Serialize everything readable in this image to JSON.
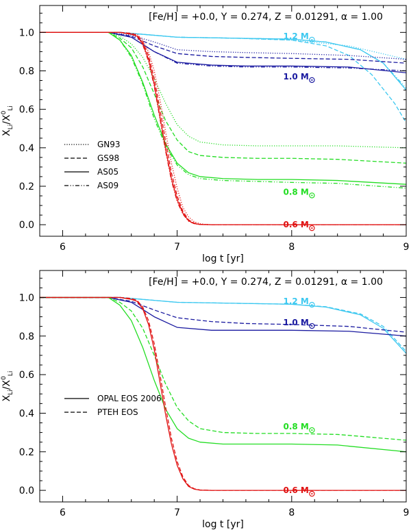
{
  "chart_data": [
    {
      "type": "line",
      "params_text": "[Fe/H] = +0.0, Y = 0.274, Z = 0.01291, α = 1.00",
      "xlabel": "log t [yr]",
      "ylabel": "X_Li / X^0_Li",
      "xlim": [
        5.8,
        9.0
      ],
      "ylim": [
        -0.06,
        1.14
      ],
      "xticks": [
        "6",
        "7",
        "8",
        "9"
      ],
      "yticks": [
        "0.0",
        "0.2",
        "0.4",
        "0.6",
        "0.8",
        "1.0"
      ],
      "legend_position": "center-left",
      "legend": [
        {
          "label": "GN93",
          "style": "dotted"
        },
        {
          "label": "GS98",
          "style": "dashed"
        },
        {
          "label": "AS05",
          "style": "solid"
        },
        {
          "label": "AS09",
          "style": "dashdot"
        }
      ],
      "masses": [
        {
          "label": "1.2 M",
          "color": "#3cc8f0",
          "label_at": [
            8.15,
            0.98
          ]
        },
        {
          "label": "1.0 M",
          "color": "#1a1aa0",
          "label_at": [
            8.15,
            0.77
          ]
        },
        {
          "label": "0.8 M",
          "color": "#22dd22",
          "label_at": [
            8.15,
            0.17
          ]
        },
        {
          "label": "0.6 M",
          "color": "#e01010",
          "label_at": [
            8.15,
            0.0
          ]
        }
      ],
      "series": [
        {
          "mass": "1.2 M",
          "style": "dotted",
          "x": [
            5.8,
            6.5,
            6.8,
            7.0,
            7.5,
            8.0,
            8.5,
            9.0
          ],
          "y": [
            1.0,
            1.0,
            0.985,
            0.975,
            0.97,
            0.96,
            0.93,
            0.86
          ]
        },
        {
          "mass": "1.2 M",
          "style": "dashed",
          "x": [
            5.8,
            6.5,
            6.8,
            7.0,
            7.5,
            8.0,
            8.3,
            8.5,
            8.7,
            8.9,
            9.0
          ],
          "y": [
            1.0,
            1.0,
            0.985,
            0.975,
            0.97,
            0.96,
            0.93,
            0.88,
            0.78,
            0.63,
            0.53
          ]
        },
        {
          "mass": "1.2 M",
          "style": "solid",
          "x": [
            5.8,
            6.5,
            6.8,
            7.0,
            7.5,
            8.0,
            8.3,
            8.6,
            8.8,
            9.0
          ],
          "y": [
            1.0,
            1.0,
            0.985,
            0.975,
            0.97,
            0.965,
            0.95,
            0.91,
            0.84,
            0.7
          ]
        },
        {
          "mass": "1.2 M",
          "style": "dashdot",
          "x": [
            5.8,
            6.5,
            6.8,
            7.0,
            7.5,
            8.0,
            8.3,
            8.6,
            8.8,
            9.0
          ],
          "y": [
            1.0,
            1.0,
            0.985,
            0.975,
            0.97,
            0.965,
            0.95,
            0.91,
            0.84,
            0.71
          ]
        },
        {
          "mass": "1.0 M",
          "style": "dotted",
          "x": [
            5.8,
            6.4,
            6.6,
            6.8,
            7.0,
            7.3,
            7.6,
            8.0,
            8.5,
            9.0
          ],
          "y": [
            1.0,
            1.0,
            0.985,
            0.95,
            0.91,
            0.9,
            0.895,
            0.89,
            0.88,
            0.86
          ]
        },
        {
          "mass": "1.0 M",
          "style": "dashed",
          "x": [
            5.8,
            6.4,
            6.6,
            6.8,
            7.0,
            7.3,
            7.6,
            8.0,
            8.5,
            9.0
          ],
          "y": [
            1.0,
            1.0,
            0.98,
            0.93,
            0.89,
            0.875,
            0.87,
            0.865,
            0.86,
            0.84
          ]
        },
        {
          "mass": "1.0 M",
          "style": "solid",
          "x": [
            5.8,
            6.4,
            6.6,
            6.8,
            7.0,
            7.3,
            7.6,
            8.0,
            8.5,
            9.0
          ],
          "y": [
            1.0,
            1.0,
            0.975,
            0.9,
            0.845,
            0.83,
            0.825,
            0.825,
            0.82,
            0.79
          ]
        },
        {
          "mass": "1.0 M",
          "style": "dashdot",
          "x": [
            5.8,
            6.4,
            6.6,
            6.8,
            7.0,
            7.3,
            7.6,
            8.0,
            8.5,
            9.0
          ],
          "y": [
            1.0,
            1.0,
            0.975,
            0.9,
            0.84,
            0.825,
            0.82,
            0.82,
            0.815,
            0.8
          ]
        },
        {
          "mass": "0.8 M",
          "style": "dotted",
          "x": [
            5.8,
            6.4,
            6.5,
            6.6,
            6.7,
            6.8,
            6.9,
            7.0,
            7.1,
            7.2,
            7.4,
            7.7,
            8.0,
            8.4,
            9.0
          ],
          "y": [
            1.0,
            1.0,
            0.98,
            0.94,
            0.87,
            0.76,
            0.63,
            0.52,
            0.46,
            0.43,
            0.415,
            0.41,
            0.41,
            0.41,
            0.4
          ]
        },
        {
          "mass": "0.8 M",
          "style": "dashed",
          "x": [
            5.8,
            6.4,
            6.5,
            6.6,
            6.7,
            6.8,
            6.9,
            7.0,
            7.1,
            7.2,
            7.4,
            7.7,
            8.0,
            8.4,
            9.0
          ],
          "y": [
            1.0,
            1.0,
            0.97,
            0.92,
            0.82,
            0.68,
            0.54,
            0.44,
            0.38,
            0.36,
            0.35,
            0.345,
            0.345,
            0.34,
            0.32
          ]
        },
        {
          "mass": "0.8 M",
          "style": "solid",
          "x": [
            5.8,
            6.4,
            6.5,
            6.6,
            6.7,
            6.8,
            6.9,
            7.0,
            7.1,
            7.2,
            7.4,
            7.7,
            8.0,
            8.4,
            9.0
          ],
          "y": [
            1.0,
            1.0,
            0.96,
            0.88,
            0.74,
            0.57,
            0.42,
            0.32,
            0.27,
            0.25,
            0.24,
            0.235,
            0.235,
            0.23,
            0.21
          ]
        },
        {
          "mass": "0.8 M",
          "style": "dashdot",
          "x": [
            5.8,
            6.4,
            6.5,
            6.6,
            6.7,
            6.8,
            6.9,
            7.0,
            7.1,
            7.2,
            7.4,
            7.7,
            8.0,
            8.4,
            9.0
          ],
          "y": [
            1.0,
            1.0,
            0.96,
            0.87,
            0.73,
            0.55,
            0.41,
            0.31,
            0.26,
            0.24,
            0.23,
            0.225,
            0.22,
            0.215,
            0.19
          ]
        },
        {
          "mass": "0.6 M",
          "style": "dotted",
          "x": [
            5.8,
            6.5,
            6.6,
            6.65,
            6.7,
            6.75,
            6.8,
            6.85,
            6.9,
            6.95,
            7.0,
            7.05,
            7.1,
            7.15,
            7.2,
            7.25,
            7.3,
            9.0
          ],
          "y": [
            1.0,
            1.0,
            0.995,
            0.99,
            0.96,
            0.9,
            0.8,
            0.65,
            0.48,
            0.32,
            0.19,
            0.09,
            0.04,
            0.015,
            0.005,
            0.001,
            0.0,
            0.0
          ]
        },
        {
          "mass": "0.6 M",
          "style": "dashed",
          "x": [
            5.8,
            6.5,
            6.6,
            6.65,
            6.7,
            6.75,
            6.8,
            6.85,
            6.9,
            6.95,
            7.0,
            7.05,
            7.1,
            7.15,
            7.2,
            7.3,
            9.0
          ],
          "y": [
            1.0,
            1.0,
            0.995,
            0.985,
            0.95,
            0.88,
            0.76,
            0.6,
            0.43,
            0.27,
            0.15,
            0.07,
            0.025,
            0.008,
            0.002,
            0.0,
            0.0
          ]
        },
        {
          "mass": "0.6 M",
          "style": "solid",
          "x": [
            5.8,
            6.5,
            6.6,
            6.65,
            6.7,
            6.75,
            6.8,
            6.85,
            6.9,
            6.95,
            7.0,
            7.05,
            7.1,
            7.15,
            7.2,
            7.3,
            9.0
          ],
          "y": [
            1.0,
            1.0,
            0.99,
            0.98,
            0.94,
            0.86,
            0.73,
            0.56,
            0.39,
            0.24,
            0.13,
            0.06,
            0.02,
            0.006,
            0.001,
            0.0,
            0.0
          ]
        },
        {
          "mass": "0.6 M",
          "style": "dashdot",
          "x": [
            5.8,
            6.5,
            6.6,
            6.65,
            6.7,
            6.75,
            6.8,
            6.85,
            6.9,
            6.95,
            7.0,
            7.05,
            7.1,
            7.15,
            7.2,
            7.3,
            9.0
          ],
          "y": [
            1.0,
            1.0,
            0.99,
            0.98,
            0.935,
            0.85,
            0.72,
            0.55,
            0.38,
            0.23,
            0.12,
            0.055,
            0.018,
            0.005,
            0.001,
            0.0,
            0.0
          ]
        }
      ]
    },
    {
      "type": "line",
      "params_text": "[Fe/H] = +0.0, Y = 0.274, Z = 0.01291, α = 1.00",
      "xlabel": "log t [yr]",
      "ylabel": "X_Li / X^0_Li",
      "xlim": [
        5.8,
        9.0
      ],
      "ylim": [
        -0.06,
        1.14
      ],
      "xticks": [
        "6",
        "7",
        "8",
        "9"
      ],
      "yticks": [
        "0.0",
        "0.2",
        "0.4",
        "0.6",
        "0.8",
        "1.0"
      ],
      "legend_position": "center-left",
      "legend": [
        {
          "label": "OPAL EOS 2006",
          "style": "solid"
        },
        {
          "label": "PTEH EOS",
          "style": "dashed"
        }
      ],
      "masses": [
        {
          "label": "1.2 M",
          "color": "#3cc8f0",
          "label_at": [
            8.15,
            0.98
          ]
        },
        {
          "label": "1.0 M",
          "color": "#1a1aa0",
          "label_at": [
            8.15,
            0.87
          ]
        },
        {
          "label": "0.8 M",
          "color": "#22dd22",
          "label_at": [
            8.15,
            0.33
          ]
        },
        {
          "label": "0.6 M",
          "color": "#e01010",
          "label_at": [
            8.15,
            0.0
          ]
        }
      ],
      "series": [
        {
          "mass": "1.2 M",
          "style": "solid",
          "x": [
            5.8,
            6.5,
            6.8,
            7.0,
            7.5,
            8.0,
            8.3,
            8.6,
            8.8,
            9.0
          ],
          "y": [
            1.0,
            1.0,
            0.985,
            0.975,
            0.97,
            0.965,
            0.95,
            0.91,
            0.84,
            0.71
          ]
        },
        {
          "mass": "1.2 M",
          "style": "dashed",
          "x": [
            5.8,
            6.5,
            6.8,
            7.0,
            7.5,
            8.0,
            8.3,
            8.6,
            8.8,
            9.0
          ],
          "y": [
            1.0,
            1.0,
            0.985,
            0.975,
            0.97,
            0.965,
            0.952,
            0.915,
            0.85,
            0.72
          ]
        },
        {
          "mass": "1.0 M",
          "style": "solid",
          "x": [
            5.8,
            6.4,
            6.6,
            6.8,
            7.0,
            7.3,
            7.6,
            8.0,
            8.5,
            9.0
          ],
          "y": [
            1.0,
            1.0,
            0.975,
            0.9,
            0.845,
            0.83,
            0.83,
            0.83,
            0.825,
            0.8
          ]
        },
        {
          "mass": "1.0 M",
          "style": "dashed",
          "x": [
            5.8,
            6.4,
            6.6,
            6.8,
            7.0,
            7.3,
            7.6,
            8.0,
            8.5,
            9.0
          ],
          "y": [
            1.0,
            1.0,
            0.98,
            0.935,
            0.895,
            0.875,
            0.865,
            0.86,
            0.85,
            0.82
          ]
        },
        {
          "mass": "0.8 M",
          "style": "solid",
          "x": [
            5.8,
            6.4,
            6.5,
            6.6,
            6.7,
            6.8,
            6.9,
            7.0,
            7.1,
            7.2,
            7.4,
            7.7,
            8.0,
            8.4,
            9.0
          ],
          "y": [
            1.0,
            1.0,
            0.96,
            0.88,
            0.74,
            0.57,
            0.42,
            0.32,
            0.27,
            0.25,
            0.24,
            0.24,
            0.24,
            0.235,
            0.2
          ]
        },
        {
          "mass": "0.8 M",
          "style": "dashed",
          "x": [
            5.8,
            6.4,
            6.5,
            6.6,
            6.7,
            6.8,
            6.9,
            7.0,
            7.1,
            7.2,
            7.4,
            7.7,
            8.0,
            8.4,
            9.0
          ],
          "y": [
            1.0,
            1.0,
            0.975,
            0.93,
            0.84,
            0.7,
            0.55,
            0.43,
            0.36,
            0.32,
            0.3,
            0.295,
            0.295,
            0.29,
            0.26
          ]
        },
        {
          "mass": "0.6 M",
          "style": "solid",
          "x": [
            5.8,
            6.5,
            6.6,
            6.65,
            6.7,
            6.75,
            6.8,
            6.85,
            6.9,
            6.95,
            7.0,
            7.05,
            7.1,
            7.15,
            7.2,
            7.3,
            9.0
          ],
          "y": [
            1.0,
            1.0,
            0.99,
            0.98,
            0.94,
            0.86,
            0.73,
            0.56,
            0.39,
            0.24,
            0.13,
            0.06,
            0.02,
            0.006,
            0.001,
            0.0,
            0.0
          ]
        },
        {
          "mass": "0.6 M",
          "style": "dashed",
          "x": [
            5.8,
            6.5,
            6.6,
            6.65,
            6.7,
            6.75,
            6.8,
            6.85,
            6.9,
            6.95,
            7.0,
            7.05,
            7.1,
            7.15,
            7.2,
            7.3,
            9.0
          ],
          "y": [
            1.0,
            1.0,
            0.995,
            0.985,
            0.95,
            0.88,
            0.76,
            0.6,
            0.43,
            0.27,
            0.15,
            0.07,
            0.025,
            0.008,
            0.002,
            0.0,
            0.0
          ]
        }
      ]
    }
  ]
}
